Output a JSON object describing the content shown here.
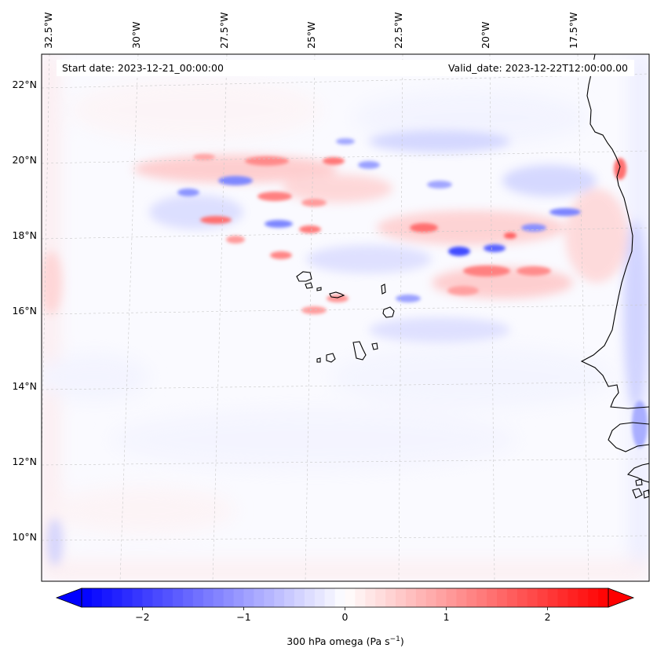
{
  "map": {
    "start_label": "Start date: 2023-12-21_00:00:00",
    "valid_label": "Valid_date: 2023-12-22T12:00:00.00",
    "lon_labels": [
      "32.5°W",
      "30°W",
      "27.5°W",
      "25°W",
      "22.5°W",
      "20°W",
      "17.5°W"
    ],
    "lat_labels": [
      "22°N",
      "20°N",
      "18°N",
      "16°N",
      "14°N",
      "12°N",
      "10°N"
    ],
    "field": "300 hPa vertical velocity (omega)"
  },
  "colorbar": {
    "ticks": [
      "−2",
      "−1",
      "0",
      "1",
      "2"
    ],
    "tick_values": [
      -2,
      -1,
      0,
      1,
      2
    ],
    "range": [
      -2.6,
      2.6
    ],
    "label_main": "300 hPa omega (Pa s",
    "label_sup": "−1",
    "label_end": ")",
    "colors": {
      "negative": "#0000ff",
      "neutral": "#ffffff",
      "positive": "#ff0000"
    }
  }
}
